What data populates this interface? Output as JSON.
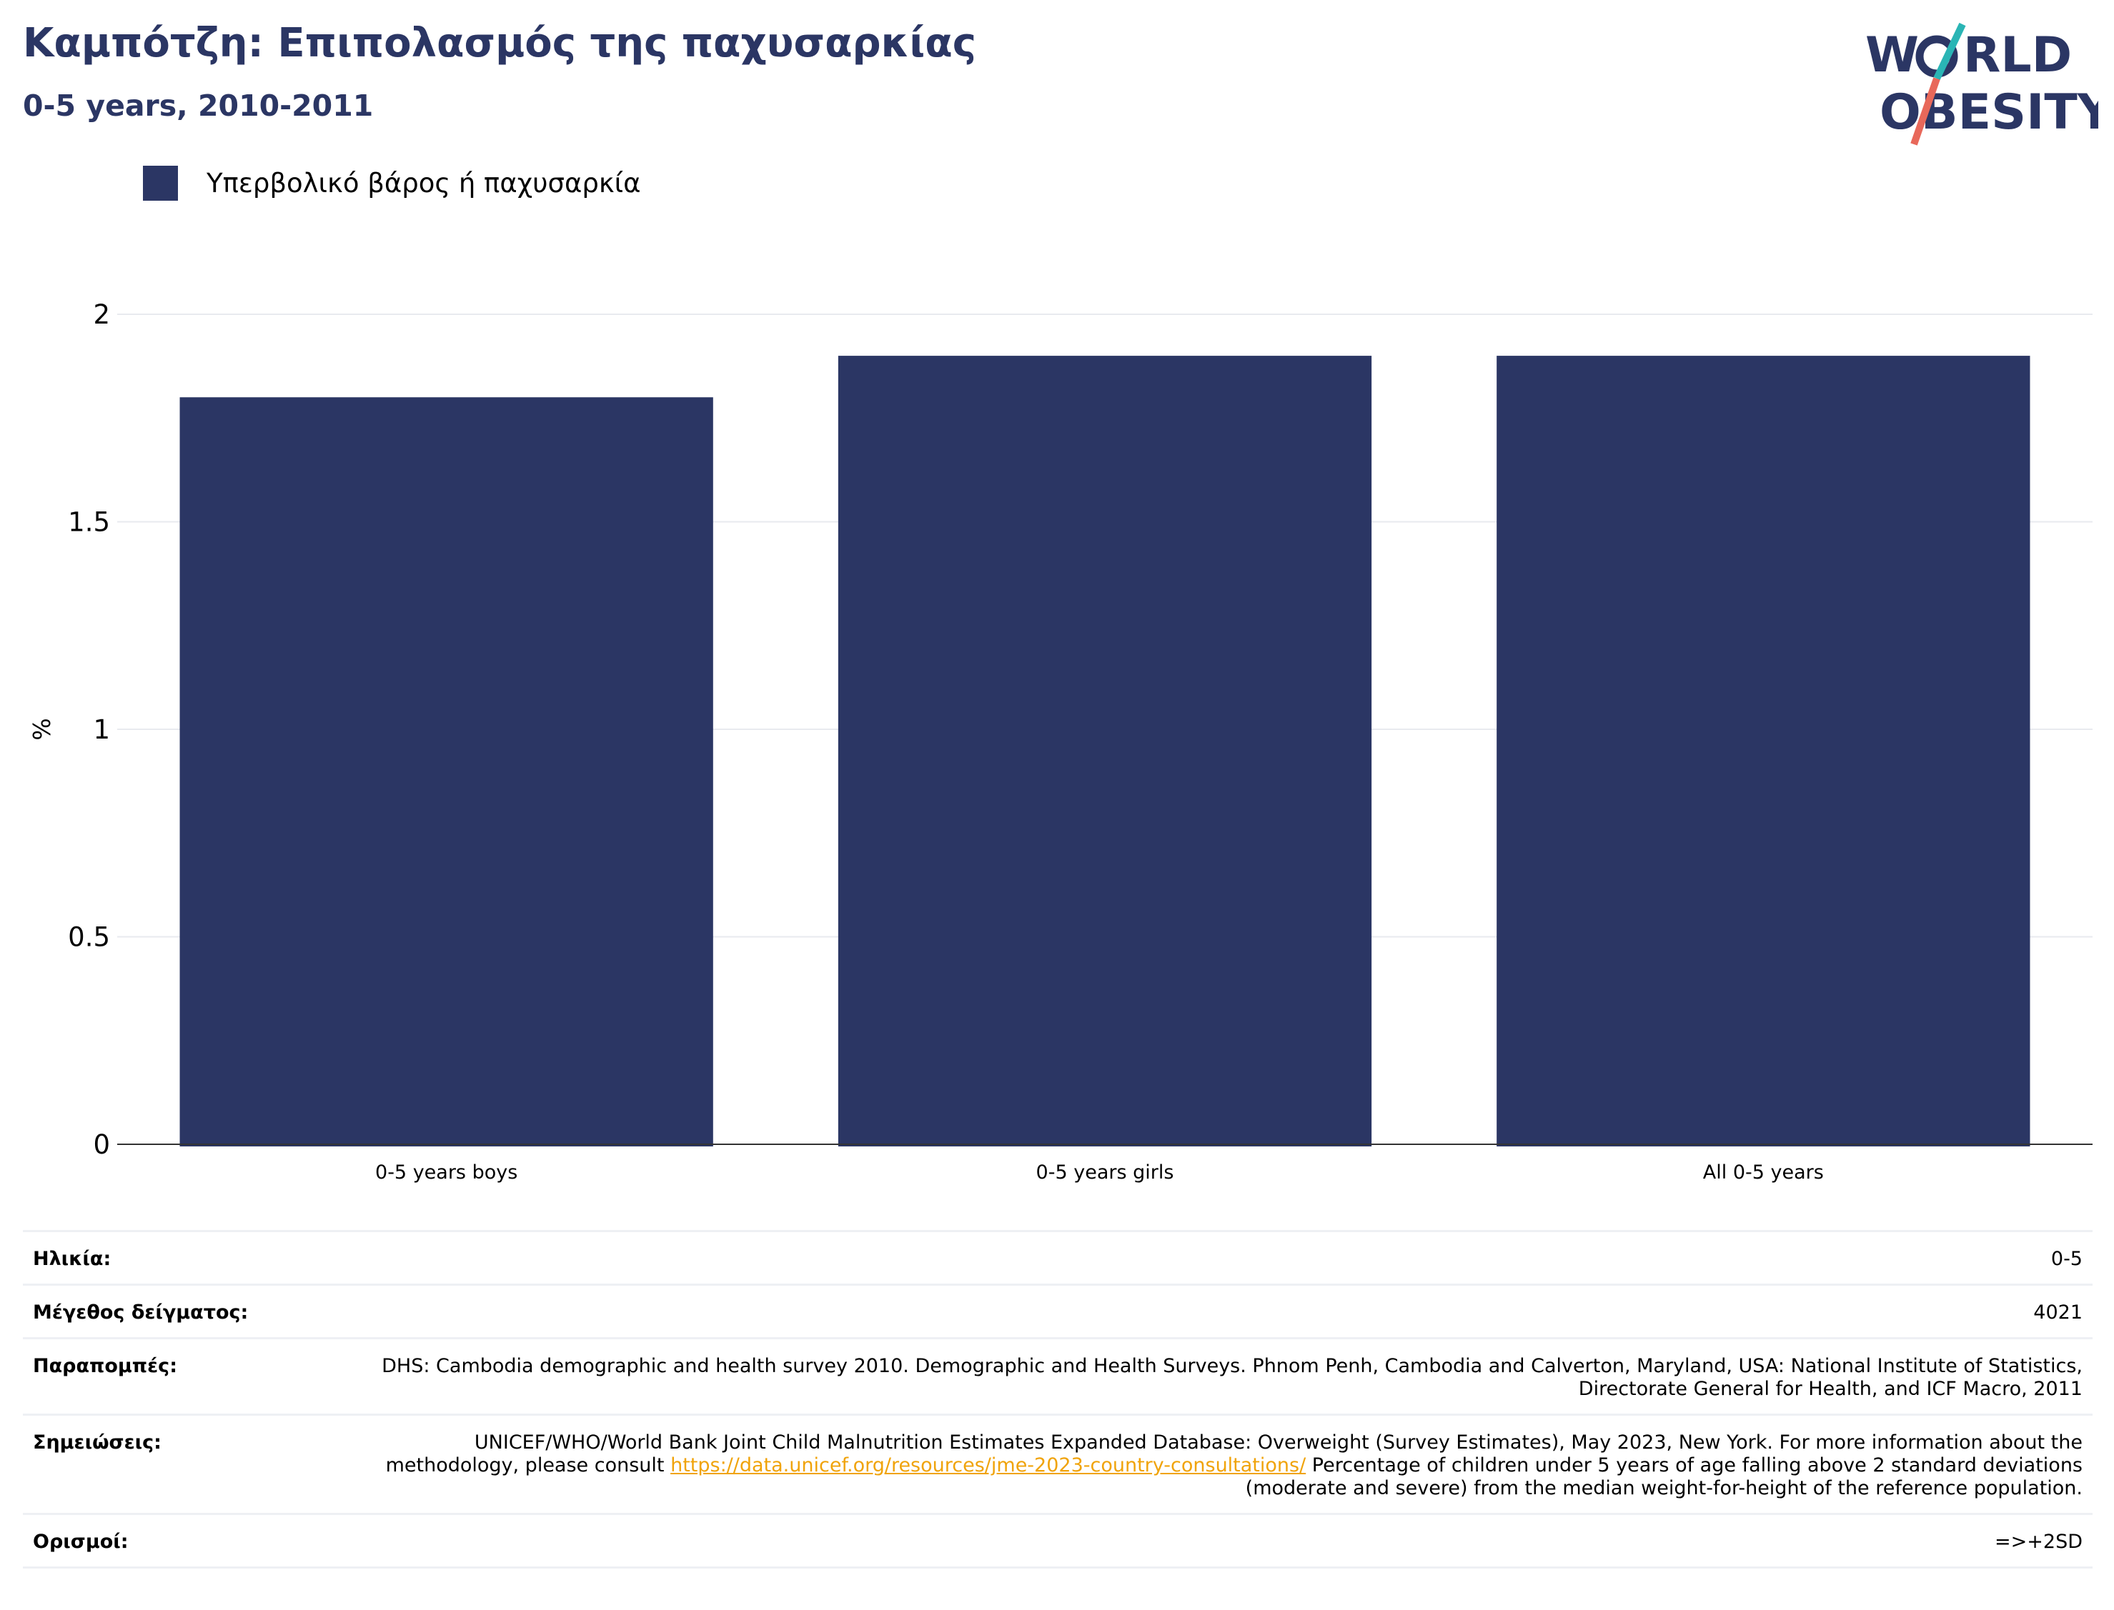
{
  "header": {
    "title": "Καμπότζη: Επιπολασμός της παχυσαρκίας",
    "subtitle": "0-5 years, 2010-2011"
  },
  "logo": {
    "line1": "W",
    "line1b": "RLD",
    "line2": "OBESITY"
  },
  "colors": {
    "bar": "#2b3664",
    "title": "#2b3664",
    "link": "#f0a30a",
    "logo_teal": "#2ab5b5",
    "logo_coral": "#e8685a"
  },
  "chart_data": {
    "type": "bar",
    "categories": [
      "0-5 years boys",
      "0-5 years girls",
      "All 0-5 years"
    ],
    "series": [
      {
        "name": "Υπερβολικό βάρος ή παχυσαρκία",
        "values": [
          1.8,
          1.9,
          1.9
        ]
      }
    ],
    "ylabel": "%",
    "ylim": [
      0,
      2
    ],
    "yticks": [
      "0",
      "0.5",
      "1",
      "1.5",
      "2"
    ],
    "grid": true,
    "legend": "top-left"
  },
  "meta": {
    "age_label": "Ηλικία:",
    "age_value": "0-5",
    "sample_label": "Μέγεθος δείγματος:",
    "sample_value": "4021",
    "refs_label": "Παραπομπές:",
    "refs_value": "DHS: Cambodia demographic and health survey 2010. Demographic and Health Surveys. Phnom Penh, Cambodia and Calverton, Maryland, USA: National Institute of Statistics, Directorate General for Health, and ICF Macro, 2011",
    "notes_label": "Σημειώσεις:",
    "notes_before": "UNICEF/WHO/World Bank Joint Child Malnutrition Estimates Expanded Database: Overweight (Survey Estimates), May 2023, New York. For more information about the methodology, please consult ",
    "notes_link": "https://data.unicef.org/resources/jme-2023-country-consultations/",
    "notes_after": " Percentage of children under 5 years of age falling above 2 standard deviations (moderate and severe) from the median weight-for-height of the reference population.",
    "defs_label": "Ορισμοί:",
    "defs_value": "=>+2SD"
  }
}
